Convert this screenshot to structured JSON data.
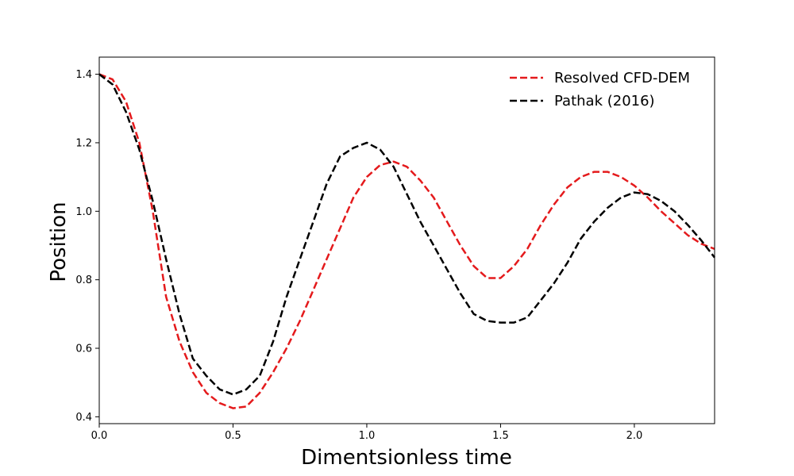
{
  "chart_data": {
    "type": "line",
    "title": "",
    "xlabel": "Dimentsionless time",
    "ylabel": "Position",
    "xlim": [
      0.0,
      2.3
    ],
    "ylim": [
      0.38,
      1.45
    ],
    "x_ticks": [
      0.0,
      0.5,
      1.0,
      1.5,
      2.0
    ],
    "x_tick_labels": [
      "0.0",
      "0.5",
      "1.0",
      "1.5",
      "2.0"
    ],
    "y_ticks": [
      0.4,
      0.6,
      0.8,
      1.0,
      1.2,
      1.4
    ],
    "y_tick_labels": [
      "0.4",
      "0.6",
      "0.8",
      "1.0",
      "1.2",
      "1.4"
    ],
    "grid": false,
    "legend_position": "top-right",
    "series": [
      {
        "name": "Resolved CFD-DEM",
        "color": "#e41a1c",
        "style": "dashed",
        "x": [
          0.0,
          0.05,
          0.1,
          0.15,
          0.2,
          0.25,
          0.3,
          0.35,
          0.4,
          0.45,
          0.5,
          0.55,
          0.6,
          0.65,
          0.7,
          0.75,
          0.8,
          0.85,
          0.9,
          0.95,
          1.0,
          1.05,
          1.1,
          1.15,
          1.2,
          1.25,
          1.3,
          1.35,
          1.4,
          1.45,
          1.5,
          1.55,
          1.6,
          1.65,
          1.7,
          1.75,
          1.8,
          1.85,
          1.9,
          1.95,
          2.0,
          2.05,
          2.1,
          2.15,
          2.2,
          2.25,
          2.3
        ],
        "y": [
          1.4,
          1.385,
          1.32,
          1.2,
          1.0,
          0.75,
          0.62,
          0.53,
          0.47,
          0.44,
          0.425,
          0.43,
          0.47,
          0.53,
          0.6,
          0.68,
          0.77,
          0.86,
          0.95,
          1.04,
          1.1,
          1.135,
          1.145,
          1.13,
          1.09,
          1.04,
          0.97,
          0.9,
          0.84,
          0.805,
          0.805,
          0.84,
          0.89,
          0.96,
          1.02,
          1.07,
          1.1,
          1.115,
          1.115,
          1.1,
          1.075,
          1.04,
          1.0,
          0.965,
          0.93,
          0.905,
          0.89
        ]
      },
      {
        "name": "Pathak (2016)",
        "color": "#000000",
        "style": "dashed",
        "x": [
          0.0,
          0.05,
          0.1,
          0.15,
          0.2,
          0.25,
          0.3,
          0.35,
          0.4,
          0.45,
          0.5,
          0.55,
          0.6,
          0.65,
          0.7,
          0.75,
          0.8,
          0.85,
          0.9,
          0.95,
          1.0,
          1.05,
          1.1,
          1.15,
          1.2,
          1.25,
          1.3,
          1.35,
          1.4,
          1.45,
          1.5,
          1.55,
          1.6,
          1.65,
          1.7,
          1.75,
          1.8,
          1.85,
          1.9,
          1.95,
          2.0,
          2.05,
          2.1,
          2.15,
          2.2,
          2.25,
          2.3
        ],
        "y": [
          1.4,
          1.37,
          1.29,
          1.18,
          1.03,
          0.86,
          0.7,
          0.57,
          0.52,
          0.48,
          0.465,
          0.48,
          0.52,
          0.62,
          0.75,
          0.86,
          0.97,
          1.08,
          1.16,
          1.185,
          1.2,
          1.18,
          1.13,
          1.05,
          0.97,
          0.9,
          0.83,
          0.76,
          0.7,
          0.68,
          0.675,
          0.675,
          0.69,
          0.74,
          0.79,
          0.85,
          0.92,
          0.97,
          1.01,
          1.04,
          1.055,
          1.05,
          1.03,
          1.0,
          0.96,
          0.915,
          0.865
        ]
      }
    ]
  }
}
